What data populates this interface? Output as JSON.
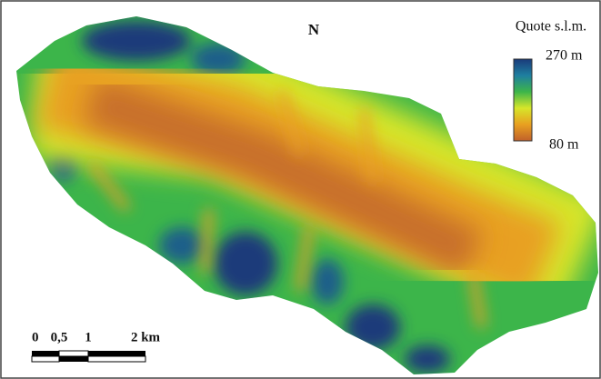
{
  "map": {
    "north_label": "N",
    "legend": {
      "title": "Quote s.l.m.",
      "max_label": "270 m",
      "min_label": "80 m"
    },
    "scale_bar": {
      "labels": [
        "0",
        "0,5",
        "1",
        "2 km"
      ]
    }
  }
}
